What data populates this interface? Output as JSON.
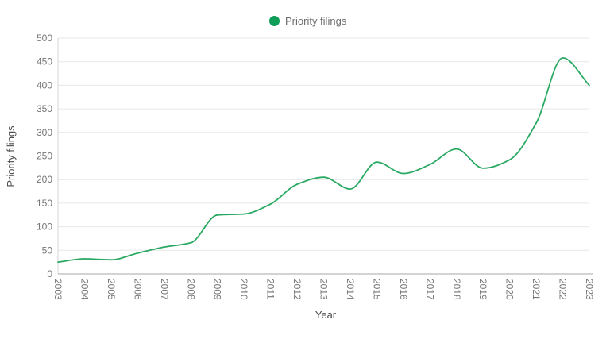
{
  "legend": {
    "label": "Priority filings"
  },
  "colors": {
    "legend_marker": "#0f9d58",
    "line": "#2aa963",
    "grid": "#e7e7e7",
    "x_axis_line": "#b9b9b9",
    "y_axis_line": "#d6d6d6",
    "tick_text": "#757575",
    "axis_title_text": "#4d4d4d",
    "legend_text": "#6e6e6e",
    "background": "#ffffff"
  },
  "chart_data": {
    "type": "line",
    "title": "",
    "x": [
      2003,
      2004,
      2005,
      2006,
      2007,
      2008,
      2009,
      2010,
      2011,
      2012,
      2013,
      2014,
      2015,
      2016,
      2017,
      2018,
      2019,
      2020,
      2021,
      2022,
      2023
    ],
    "series": [
      {
        "name": "Priority filings",
        "values": [
          25,
          32,
          30,
          44,
          57,
          66,
          125,
          127,
          148,
          190,
          205,
          180,
          237,
          213,
          232,
          265,
          224,
          242,
          320,
          458,
          400
        ]
      }
    ],
    "xlabel": "Year",
    "ylabel": "Priority filings",
    "ylim": [
      0,
      500
    ],
    "ytick_step": 50,
    "grid": true,
    "curve": "monotone",
    "legend_position": "top-center"
  }
}
